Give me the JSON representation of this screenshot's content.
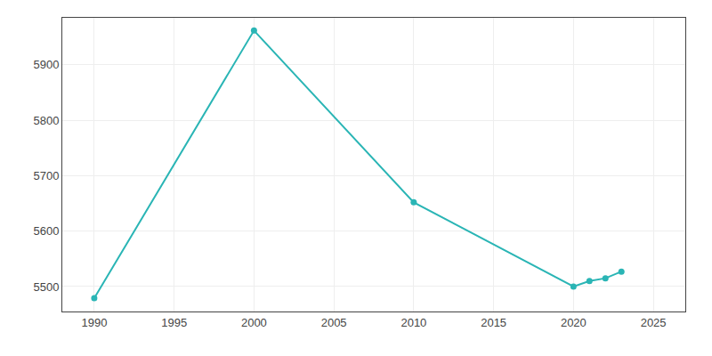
{
  "chart_data": {
    "type": "line",
    "x": [
      1990,
      2000,
      2010,
      2020,
      2021,
      2022,
      2023
    ],
    "values": [
      5479,
      5962,
      5652,
      5500,
      5510,
      5515,
      5527
    ],
    "color": "#2ab5b5",
    "marker": "circle",
    "xlim": [
      1988,
      2027
    ],
    "xticks": [
      1990,
      1995,
      2000,
      2005,
      2010,
      2015,
      2020,
      2025
    ],
    "ylim": [
      5455,
      5985
    ],
    "yticks": [
      5500,
      5600,
      5700,
      5800,
      5900
    ],
    "grid": true
  }
}
